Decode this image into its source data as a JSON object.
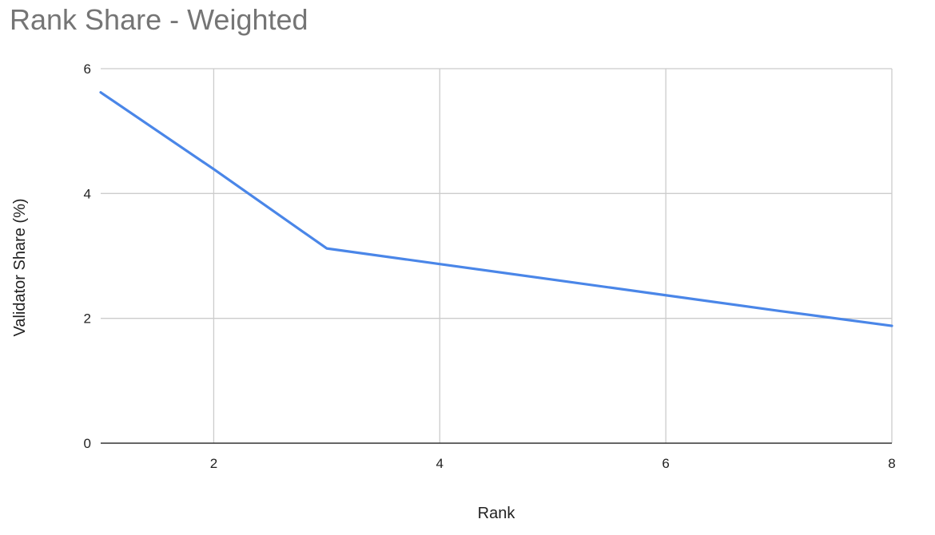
{
  "chart_data": {
    "type": "line",
    "title": "Rank Share - Weighted",
    "xlabel": "Rank",
    "ylabel": "Validator Share (%)",
    "xlim": [
      1,
      8
    ],
    "ylim": [
      0,
      6
    ],
    "xticks": [
      2,
      4,
      6,
      8
    ],
    "yticks": [
      0,
      2,
      4,
      6
    ],
    "grid": true,
    "legend": "none",
    "series": [
      {
        "color": "#4a86e8",
        "x": [
          1,
          2,
          3,
          4,
          5,
          6,
          7,
          8
        ],
        "y": [
          5.62,
          4.39,
          3.12,
          2.87,
          2.62,
          2.37,
          2.12,
          1.88
        ]
      }
    ]
  }
}
